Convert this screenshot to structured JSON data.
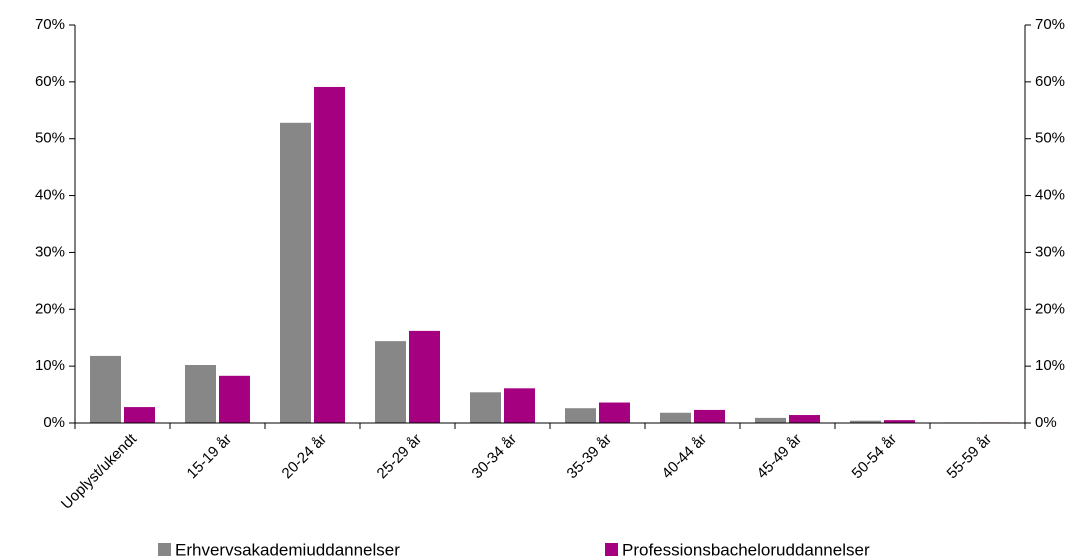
{
  "chart_data": {
    "type": "bar",
    "categories": [
      "Uoplyst/ukendt",
      "15-19 år",
      "20-24 år",
      "25-29 år",
      "30-34 år",
      "35-39 år",
      "40-44 år",
      "45-49 år",
      "50-54 år",
      "55-59 år"
    ],
    "series": [
      {
        "name": "Erhvervsakademiuddannelser",
        "color": "#878787",
        "values": [
          11.8,
          10.2,
          52.8,
          14.4,
          5.4,
          2.6,
          1.8,
          0.9,
          0.4,
          0.1
        ]
      },
      {
        "name": "Professionsbacheloruddannelser",
        "color": "#a50080",
        "values": [
          2.8,
          8.3,
          59.1,
          16.2,
          6.1,
          3.6,
          2.3,
          1.4,
          0.5,
          0.1
        ]
      }
    ],
    "ylim": [
      0,
      70
    ],
    "yticks": [
      {
        "value": 0,
        "label": "0%"
      },
      {
        "value": 10,
        "label": "10%"
      },
      {
        "value": 20,
        "label": "20%"
      },
      {
        "value": 30,
        "label": "30%"
      },
      {
        "value": 40,
        "label": "40%"
      },
      {
        "value": 50,
        "label": "50%"
      },
      {
        "value": 60,
        "label": "60%"
      },
      {
        "value": 70,
        "label": "70%"
      }
    ],
    "y2lim": [
      0,
      70
    ],
    "y2ticks": [
      {
        "value": 0,
        "label": "0%"
      },
      {
        "value": 10,
        "label": "10%"
      },
      {
        "value": 20,
        "label": "20%"
      },
      {
        "value": 30,
        "label": "30%"
      },
      {
        "value": 40,
        "label": "40%"
      },
      {
        "value": 50,
        "label": "50%"
      },
      {
        "value": 60,
        "label": "60%"
      },
      {
        "value": 70,
        "label": "70%"
      }
    ],
    "grid": false,
    "legend": "bottom"
  }
}
